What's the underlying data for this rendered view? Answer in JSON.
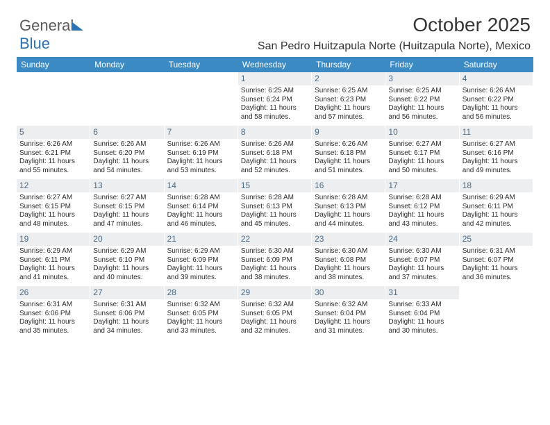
{
  "brand": {
    "word1": "General",
    "word2": "Blue"
  },
  "title": "October 2025",
  "subtitle": "San Pedro Huitzapula Norte (Huitzapula Norte), Mexico",
  "colors": {
    "header_bg": "#3b8ac4",
    "header_text": "#ffffff",
    "daynum_bg": "#eceef0",
    "daynum_text": "#4b6a86",
    "body_text": "#2b2b2b",
    "title_text": "#353535",
    "brand_gray": "#5a5a5a",
    "brand_blue": "#2a72b5",
    "background": "#ffffff"
  },
  "font_sizes": {
    "title": 28,
    "subtitle": 16,
    "logo": 22,
    "header": 12,
    "daynum": 12,
    "body": 10
  },
  "day_headers": [
    "Sunday",
    "Monday",
    "Tuesday",
    "Wednesday",
    "Thursday",
    "Friday",
    "Saturday"
  ],
  "weeks": [
    [
      {
        "n": "",
        "lines": []
      },
      {
        "n": "",
        "lines": []
      },
      {
        "n": "",
        "lines": []
      },
      {
        "n": "1",
        "lines": [
          "Sunrise: 6:25 AM",
          "Sunset: 6:24 PM",
          "Daylight: 11 hours and 58 minutes."
        ]
      },
      {
        "n": "2",
        "lines": [
          "Sunrise: 6:25 AM",
          "Sunset: 6:23 PM",
          "Daylight: 11 hours and 57 minutes."
        ]
      },
      {
        "n": "3",
        "lines": [
          "Sunrise: 6:25 AM",
          "Sunset: 6:22 PM",
          "Daylight: 11 hours and 56 minutes."
        ]
      },
      {
        "n": "4",
        "lines": [
          "Sunrise: 6:26 AM",
          "Sunset: 6:22 PM",
          "Daylight: 11 hours and 56 minutes."
        ]
      }
    ],
    [
      {
        "n": "5",
        "lines": [
          "Sunrise: 6:26 AM",
          "Sunset: 6:21 PM",
          "Daylight: 11 hours and 55 minutes."
        ]
      },
      {
        "n": "6",
        "lines": [
          "Sunrise: 6:26 AM",
          "Sunset: 6:20 PM",
          "Daylight: 11 hours and 54 minutes."
        ]
      },
      {
        "n": "7",
        "lines": [
          "Sunrise: 6:26 AM",
          "Sunset: 6:19 PM",
          "Daylight: 11 hours and 53 minutes."
        ]
      },
      {
        "n": "8",
        "lines": [
          "Sunrise: 6:26 AM",
          "Sunset: 6:18 PM",
          "Daylight: 11 hours and 52 minutes."
        ]
      },
      {
        "n": "9",
        "lines": [
          "Sunrise: 6:26 AM",
          "Sunset: 6:18 PM",
          "Daylight: 11 hours and 51 minutes."
        ]
      },
      {
        "n": "10",
        "lines": [
          "Sunrise: 6:27 AM",
          "Sunset: 6:17 PM",
          "Daylight: 11 hours and 50 minutes."
        ]
      },
      {
        "n": "11",
        "lines": [
          "Sunrise: 6:27 AM",
          "Sunset: 6:16 PM",
          "Daylight: 11 hours and 49 minutes."
        ]
      }
    ],
    [
      {
        "n": "12",
        "lines": [
          "Sunrise: 6:27 AM",
          "Sunset: 6:15 PM",
          "Daylight: 11 hours and 48 minutes."
        ]
      },
      {
        "n": "13",
        "lines": [
          "Sunrise: 6:27 AM",
          "Sunset: 6:15 PM",
          "Daylight: 11 hours and 47 minutes."
        ]
      },
      {
        "n": "14",
        "lines": [
          "Sunrise: 6:28 AM",
          "Sunset: 6:14 PM",
          "Daylight: 11 hours and 46 minutes."
        ]
      },
      {
        "n": "15",
        "lines": [
          "Sunrise: 6:28 AM",
          "Sunset: 6:13 PM",
          "Daylight: 11 hours and 45 minutes."
        ]
      },
      {
        "n": "16",
        "lines": [
          "Sunrise: 6:28 AM",
          "Sunset: 6:13 PM",
          "Daylight: 11 hours and 44 minutes."
        ]
      },
      {
        "n": "17",
        "lines": [
          "Sunrise: 6:28 AM",
          "Sunset: 6:12 PM",
          "Daylight: 11 hours and 43 minutes."
        ]
      },
      {
        "n": "18",
        "lines": [
          "Sunrise: 6:29 AM",
          "Sunset: 6:11 PM",
          "Daylight: 11 hours and 42 minutes."
        ]
      }
    ],
    [
      {
        "n": "19",
        "lines": [
          "Sunrise: 6:29 AM",
          "Sunset: 6:11 PM",
          "Daylight: 11 hours and 41 minutes."
        ]
      },
      {
        "n": "20",
        "lines": [
          "Sunrise: 6:29 AM",
          "Sunset: 6:10 PM",
          "Daylight: 11 hours and 40 minutes."
        ]
      },
      {
        "n": "21",
        "lines": [
          "Sunrise: 6:29 AM",
          "Sunset: 6:09 PM",
          "Daylight: 11 hours and 39 minutes."
        ]
      },
      {
        "n": "22",
        "lines": [
          "Sunrise: 6:30 AM",
          "Sunset: 6:09 PM",
          "Daylight: 11 hours and 38 minutes."
        ]
      },
      {
        "n": "23",
        "lines": [
          "Sunrise: 6:30 AM",
          "Sunset: 6:08 PM",
          "Daylight: 11 hours and 38 minutes."
        ]
      },
      {
        "n": "24",
        "lines": [
          "Sunrise: 6:30 AM",
          "Sunset: 6:07 PM",
          "Daylight: 11 hours and 37 minutes."
        ]
      },
      {
        "n": "25",
        "lines": [
          "Sunrise: 6:31 AM",
          "Sunset: 6:07 PM",
          "Daylight: 11 hours and 36 minutes."
        ]
      }
    ],
    [
      {
        "n": "26",
        "lines": [
          "Sunrise: 6:31 AM",
          "Sunset: 6:06 PM",
          "Daylight: 11 hours and 35 minutes."
        ]
      },
      {
        "n": "27",
        "lines": [
          "Sunrise: 6:31 AM",
          "Sunset: 6:06 PM",
          "Daylight: 11 hours and 34 minutes."
        ]
      },
      {
        "n": "28",
        "lines": [
          "Sunrise: 6:32 AM",
          "Sunset: 6:05 PM",
          "Daylight: 11 hours and 33 minutes."
        ]
      },
      {
        "n": "29",
        "lines": [
          "Sunrise: 6:32 AM",
          "Sunset: 6:05 PM",
          "Daylight: 11 hours and 32 minutes."
        ]
      },
      {
        "n": "30",
        "lines": [
          "Sunrise: 6:32 AM",
          "Sunset: 6:04 PM",
          "Daylight: 11 hours and 31 minutes."
        ]
      },
      {
        "n": "31",
        "lines": [
          "Sunrise: 6:33 AM",
          "Sunset: 6:04 PM",
          "Daylight: 11 hours and 30 minutes."
        ]
      },
      {
        "n": "",
        "lines": []
      }
    ]
  ]
}
